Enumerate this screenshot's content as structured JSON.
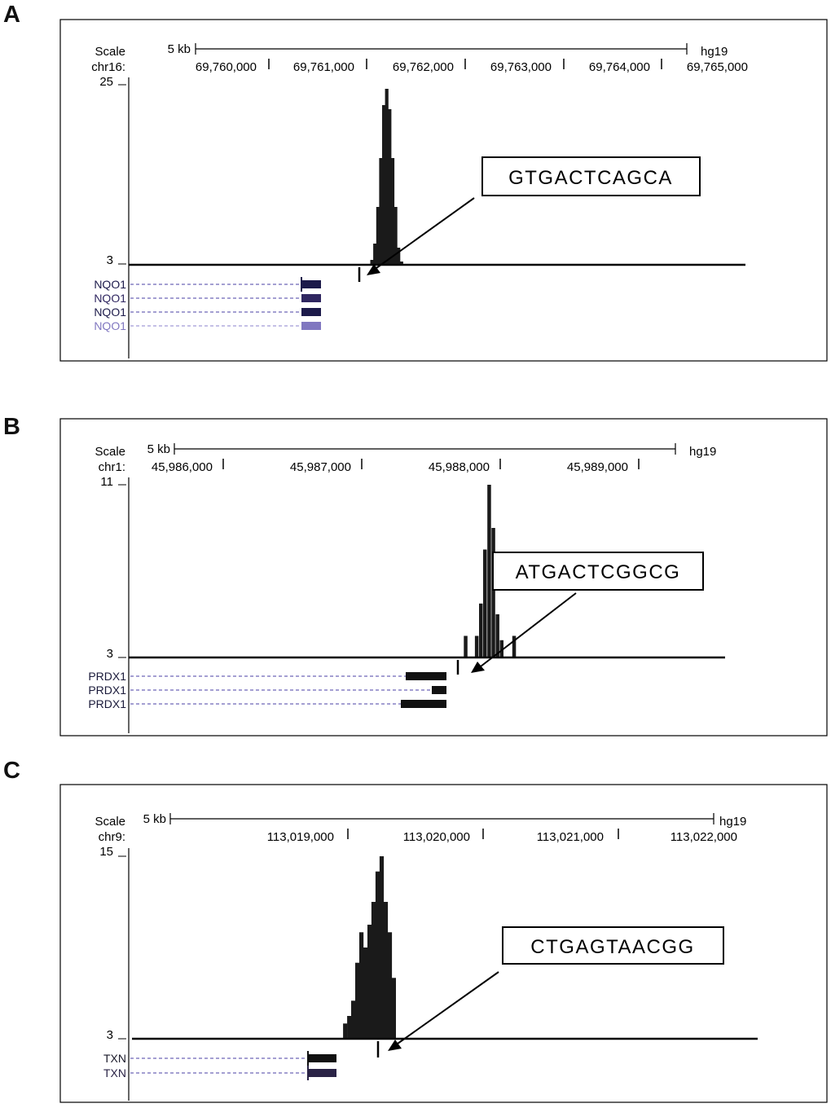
{
  "panels": [
    {
      "letter": "A",
      "scale_label": "Scale",
      "chrom_label": "chr16:",
      "scale_bar_label": "5 kb",
      "assembly": "hg19",
      "y_max_label": "25",
      "y_min_label": "3",
      "motif": "GTGACTCAGCA",
      "ticks": [
        "69,760,000",
        "69,761,000",
        "69,762,000",
        "69,763,000",
        "69,764,000",
        "69,765,000"
      ],
      "genes": [
        {
          "name": "NQO1",
          "color": "#1c1a4a"
        },
        {
          "name": "NQO1",
          "color": "#2f2660"
        },
        {
          "name": "NQO1",
          "color": "#1c1a4a"
        },
        {
          "name": "NQO1",
          "color": "#8077c0"
        }
      ],
      "chart_data": {
        "type": "bar",
        "ylim": [
          3,
          25
        ],
        "x": [
          69761050,
          69761080,
          69761110,
          69761140,
          69761170,
          69761200,
          69761230,
          69761260,
          69761290,
          69761320,
          69761350
        ],
        "values": [
          3.5,
          5.5,
          10,
          16,
          22.5,
          24.5,
          22,
          16,
          10,
          5,
          3.3
        ]
      }
    },
    {
      "letter": "B",
      "scale_label": "Scale",
      "chrom_label": "chr1:",
      "scale_bar_label": "5 kb",
      "assembly": "hg19",
      "y_max_label": "11",
      "y_min_label": "3",
      "motif": "ATGACTCGGCG",
      "ticks": [
        "45,986,000",
        "45,987,000",
        "45,988,000",
        "45,989,000"
      ],
      "genes": [
        {
          "name": "PRDX1",
          "color": "#1a1a3a"
        },
        {
          "name": "PRDX1",
          "color": "#1a1a3a"
        },
        {
          "name": "PRDX1",
          "color": "#1a1a3a"
        }
      ],
      "chart_data": {
        "type": "bar",
        "ylim": [
          3,
          11
        ],
        "x": [
          45987750,
          45987830,
          45987860,
          45987890,
          45987920,
          45987950,
          45987980,
          45988010,
          45988100
        ],
        "values": [
          4,
          4,
          5.5,
          8,
          11,
          9,
          5,
          3.8,
          4
        ]
      }
    },
    {
      "letter": "C",
      "scale_label": "Scale",
      "chrom_label": "chr9:",
      "scale_bar_label": "5 kb",
      "assembly": "hg19",
      "y_max_label": "15",
      "y_min_label": "3",
      "motif": "CTGAGTAACGG",
      "ticks": [
        "113,019,000",
        "113,020,000",
        "113,021,000",
        "113,022,000"
      ],
      "genes": [
        {
          "name": "TXN",
          "color": "#1a1a2a"
        },
        {
          "name": "TXN",
          "color": "#2a2346"
        }
      ],
      "chart_data": {
        "type": "bar",
        "ylim": [
          3,
          15
        ],
        "x": [
          113018980,
          113019010,
          113019040,
          113019070,
          113019100,
          113019130,
          113019160,
          113019190,
          113019220,
          113019250,
          113019280,
          113019310,
          113019340
        ],
        "values": [
          4,
          4.5,
          5.5,
          8,
          10,
          9,
          10.5,
          12,
          14,
          15,
          12,
          10,
          7
        ]
      }
    }
  ]
}
